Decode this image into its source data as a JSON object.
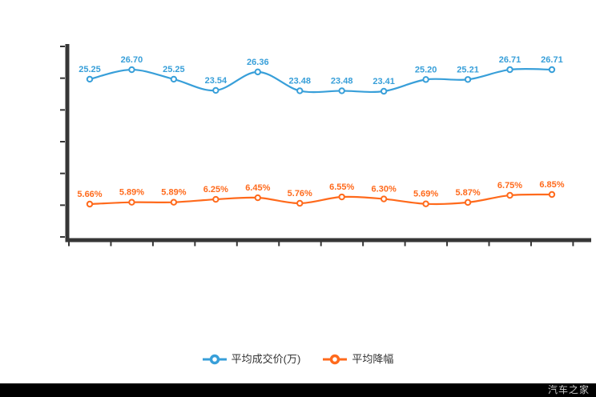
{
  "chart_data": {
    "type": "line",
    "title": "",
    "x_count": 12,
    "x_tick_labels": [],
    "grid": false,
    "legend_position": "bottom",
    "axis_color": "#363636",
    "series": [
      {
        "name": "平均成交价(万)",
        "color": "#389FD9",
        "values": [
          25.25,
          26.7,
          25.25,
          23.54,
          26.36,
          23.48,
          23.48,
          23.41,
          25.2,
          25.21,
          26.71,
          26.71
        ],
        "labels": [
          "25.25",
          "26.70",
          "25.25",
          "23.54",
          "26.36",
          "23.48",
          "23.48",
          "23.41",
          "25.20",
          "25.21",
          "26.71",
          "26.71"
        ]
      },
      {
        "name": "平均降幅",
        "color": "#FF6A1C",
        "values": [
          5.66,
          5.89,
          5.89,
          6.25,
          6.45,
          5.76,
          6.55,
          6.3,
          5.69,
          5.87,
          6.75,
          6.85
        ],
        "labels": [
          "5.66%",
          "5.89%",
          "5.89%",
          "6.25%",
          "6.45%",
          "5.76%",
          "6.55%",
          "6.30%",
          "5.69%",
          "5.87%",
          "6.75%",
          "6.85%"
        ]
      }
    ]
  },
  "legend": {
    "items": [
      {
        "label": "平均成交价(万)",
        "color": "#389FD9"
      },
      {
        "label": "平均降幅",
        "color": "#FF6A1C"
      }
    ]
  },
  "watermark": {
    "text": "汽车之家"
  }
}
